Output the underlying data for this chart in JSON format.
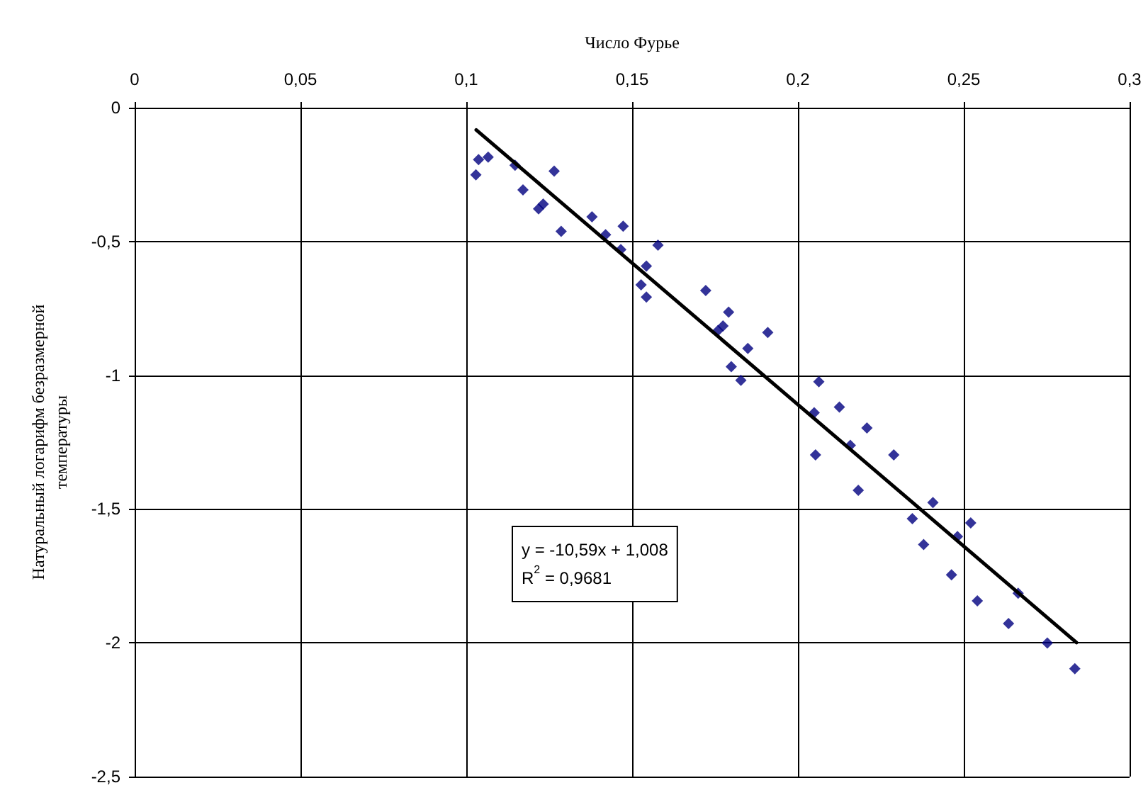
{
  "chart_data": {
    "type": "scatter",
    "xlabel": "Число Фурье",
    "ylabel": "Натуральный логарифм безразмерной температуры",
    "xlim": [
      0,
      0.3
    ],
    "ylim": [
      -2.5,
      0
    ],
    "xticks": [
      0,
      {
        "value": 0.05,
        "label": "0,05"
      },
      {
        "value": 0.1,
        "label": "0,1"
      },
      {
        "value": 0.15,
        "label": "0,15"
      },
      {
        "value": 0.2,
        "label": "0,2"
      },
      {
        "value": 0.25,
        "label": "0,25"
      },
      {
        "value": 0.3,
        "label": "0,3"
      }
    ],
    "yticks": [
      {
        "value": -2.5,
        "label": "-2,5"
      },
      -2,
      {
        "value": -1.5,
        "label": "-1,5"
      },
      -1,
      {
        "value": -0.5,
        "label": "-0,5"
      },
      0
    ],
    "grid": true,
    "series": [
      {
        "color": "#000080",
        "marker": "diamond",
        "x": [
          0.1029,
          0.1037,
          0.1066,
          0.1147,
          0.1171,
          0.1265,
          0.1218,
          0.1232,
          0.1286,
          0.1379,
          0.142,
          0.1473,
          0.1466,
          0.1578,
          0.1543,
          0.1527,
          0.1543,
          0.1722,
          0.1791,
          0.1759,
          0.1774,
          0.1909,
          0.1849,
          0.1799,
          0.1828,
          0.2063,
          0.2049,
          0.2125,
          0.2208,
          0.2158,
          0.2053,
          0.2289,
          0.2182,
          0.2407,
          0.2345,
          0.2521,
          0.2481,
          0.2379,
          0.2463,
          0.2541,
          0.2664,
          0.2635,
          0.2752,
          0.2835
        ],
        "values": [
          -0.251,
          -0.194,
          -0.185,
          -0.215,
          -0.307,
          -0.237,
          -0.378,
          -0.36,
          -0.462,
          -0.408,
          -0.475,
          -0.443,
          -0.53,
          -0.514,
          -0.592,
          -0.662,
          -0.708,
          -0.683,
          -0.764,
          -0.833,
          -0.816,
          -0.84,
          -0.9,
          -0.968,
          -1.019,
          -1.024,
          -1.14,
          -1.119,
          -1.197,
          -1.262,
          -1.298,
          -1.298,
          -1.43,
          -1.476,
          -1.536,
          -1.552,
          -1.603,
          -1.633,
          -1.746,
          -1.843,
          -1.815,
          -1.928,
          -2.001,
          -2.097
        ]
      },
      {
        "type": "line",
        "color": "#000000",
        "marker": "none",
        "line_style": "solid",
        "x": [
          0.103,
          0.284
        ],
        "values": [
          -0.083,
          -1.999
        ]
      }
    ],
    "annotations": [
      "y = -10,59x + 1,008",
      "R$^{2}$ = 0,9681"
    ]
  }
}
